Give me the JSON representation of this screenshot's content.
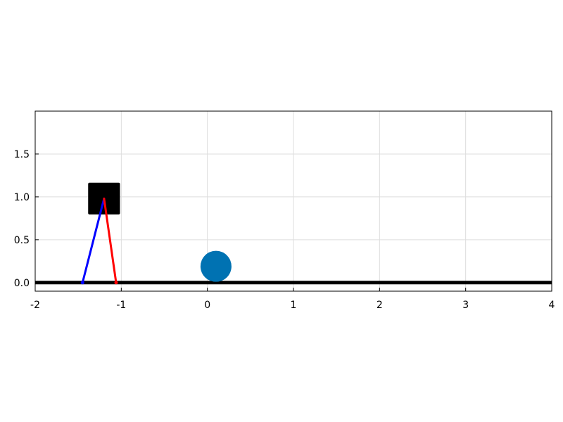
{
  "chart_data": {
    "type": "scatter",
    "title": "",
    "xlabel": "",
    "ylabel": "",
    "xlim": [
      -2,
      4
    ],
    "ylim": [
      -0.1,
      2.0
    ],
    "xticks": [
      -2,
      -1,
      0,
      1,
      2,
      3,
      4
    ],
    "xtick_labels": [
      "-2",
      "-1",
      "0",
      "1",
      "2",
      "3",
      "4"
    ],
    "yticks": [
      0.0,
      0.5,
      1.0,
      1.5
    ],
    "ytick_labels": [
      "0.0",
      "0.5",
      "1.0",
      "1.5"
    ],
    "grid": true,
    "ground": {
      "y": 0.0,
      "x_start": -2,
      "x_end": 4,
      "color": "#000000"
    },
    "body": {
      "center": [
        -1.2,
        0.98
      ],
      "width": 0.37,
      "height": 0.37,
      "color": "#000000"
    },
    "legs": [
      {
        "from": [
          -1.2,
          0.98
        ],
        "to": [
          -1.45,
          0.0
        ],
        "color": "#0000ff"
      },
      {
        "from": [
          -1.2,
          0.98
        ],
        "to": [
          -1.06,
          0.0
        ],
        "color": "#ff0000"
      }
    ],
    "ball": {
      "center": [
        0.1,
        0.19
      ],
      "radius": 0.18,
      "color": "#0072b2"
    }
  }
}
